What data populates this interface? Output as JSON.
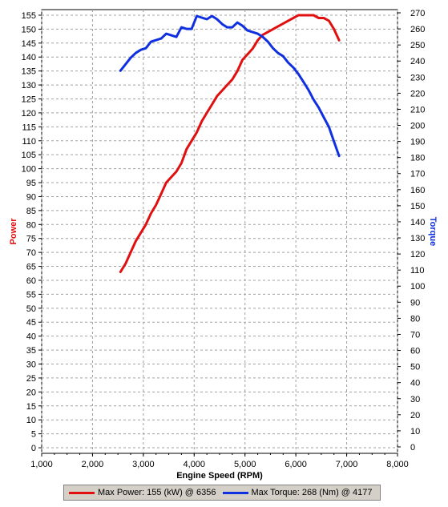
{
  "chart_data": {
    "type": "line",
    "xlabel": "Engine Speed (RPM)",
    "ylabel_left": "Power",
    "ylabel_right": "Torque",
    "xlim": [
      1000,
      8000
    ],
    "ylim_left": [
      -2,
      157
    ],
    "ylim_right": [
      -4,
      272
    ],
    "x_ticks": [
      1000,
      2000,
      3000,
      4000,
      5000,
      6000,
      7000,
      8000
    ],
    "x_tick_labels": [
      "1,000",
      "2,000",
      "3,000",
      "4,000",
      "5,000",
      "6,000",
      "7,000",
      "8,000"
    ],
    "y_left_ticks": [
      0,
      5,
      10,
      15,
      20,
      25,
      30,
      35,
      40,
      45,
      50,
      55,
      60,
      65,
      70,
      75,
      80,
      85,
      90,
      95,
      100,
      105,
      110,
      115,
      120,
      125,
      130,
      135,
      140,
      145,
      150,
      155
    ],
    "y_right_ticks": [
      0,
      10,
      20,
      30,
      40,
      50,
      60,
      70,
      80,
      90,
      100,
      110,
      120,
      130,
      140,
      150,
      160,
      170,
      180,
      190,
      200,
      210,
      220,
      230,
      240,
      250,
      260,
      270
    ],
    "grid": true,
    "legend_position": "bottom",
    "series": [
      {
        "name": "Max Power: 155 (kW) @ 6356",
        "axis": "left",
        "color": "#e01010",
        "x": [
          2550,
          2650,
          2750,
          2850,
          2950,
          3050,
          3150,
          3250,
          3350,
          3450,
          3550,
          3650,
          3750,
          3850,
          3950,
          4050,
          4150,
          4250,
          4350,
          4450,
          4550,
          4650,
          4750,
          4850,
          4950,
          5050,
          5150,
          5250,
          5350,
          5450,
          5550,
          5650,
          5750,
          5850,
          5950,
          6050,
          6150,
          6250,
          6350,
          6450,
          6550,
          6650,
          6750,
          6850
        ],
        "values": [
          63,
          66,
          70,
          74,
          77,
          80,
          84,
          87,
          91,
          95,
          97,
          99,
          102,
          107,
          110,
          113,
          117,
          120,
          123,
          126,
          128,
          130,
          132,
          135,
          139,
          141,
          143,
          146,
          148,
          149,
          150,
          151,
          152,
          153,
          154,
          155,
          155,
          155,
          155,
          154,
          154,
          153,
          150,
          146
        ]
      },
      {
        "name": "Max Torque: 268 (Nm) @ 4177",
        "axis": "right",
        "color": "#1030e0",
        "x": [
          2550,
          2650,
          2750,
          2850,
          2950,
          3050,
          3150,
          3250,
          3350,
          3450,
          3550,
          3650,
          3750,
          3850,
          3950,
          4050,
          4150,
          4250,
          4350,
          4450,
          4550,
          4650,
          4750,
          4850,
          4950,
          5050,
          5150,
          5250,
          5350,
          5450,
          5550,
          5650,
          5750,
          5850,
          5950,
          6050,
          6150,
          6250,
          6350,
          6450,
          6550,
          6650,
          6750,
          6850
        ],
        "values": [
          234,
          238,
          242,
          245,
          247,
          248,
          252,
          253,
          254,
          257,
          256,
          255,
          261,
          260,
          260,
          268,
          267,
          266,
          268,
          266,
          263,
          261,
          261,
          264,
          262,
          259,
          258,
          257,
          255,
          252,
          248,
          245,
          243,
          239,
          236,
          232,
          227,
          222,
          216,
          211,
          205,
          199,
          190,
          181
        ]
      }
    ]
  }
}
